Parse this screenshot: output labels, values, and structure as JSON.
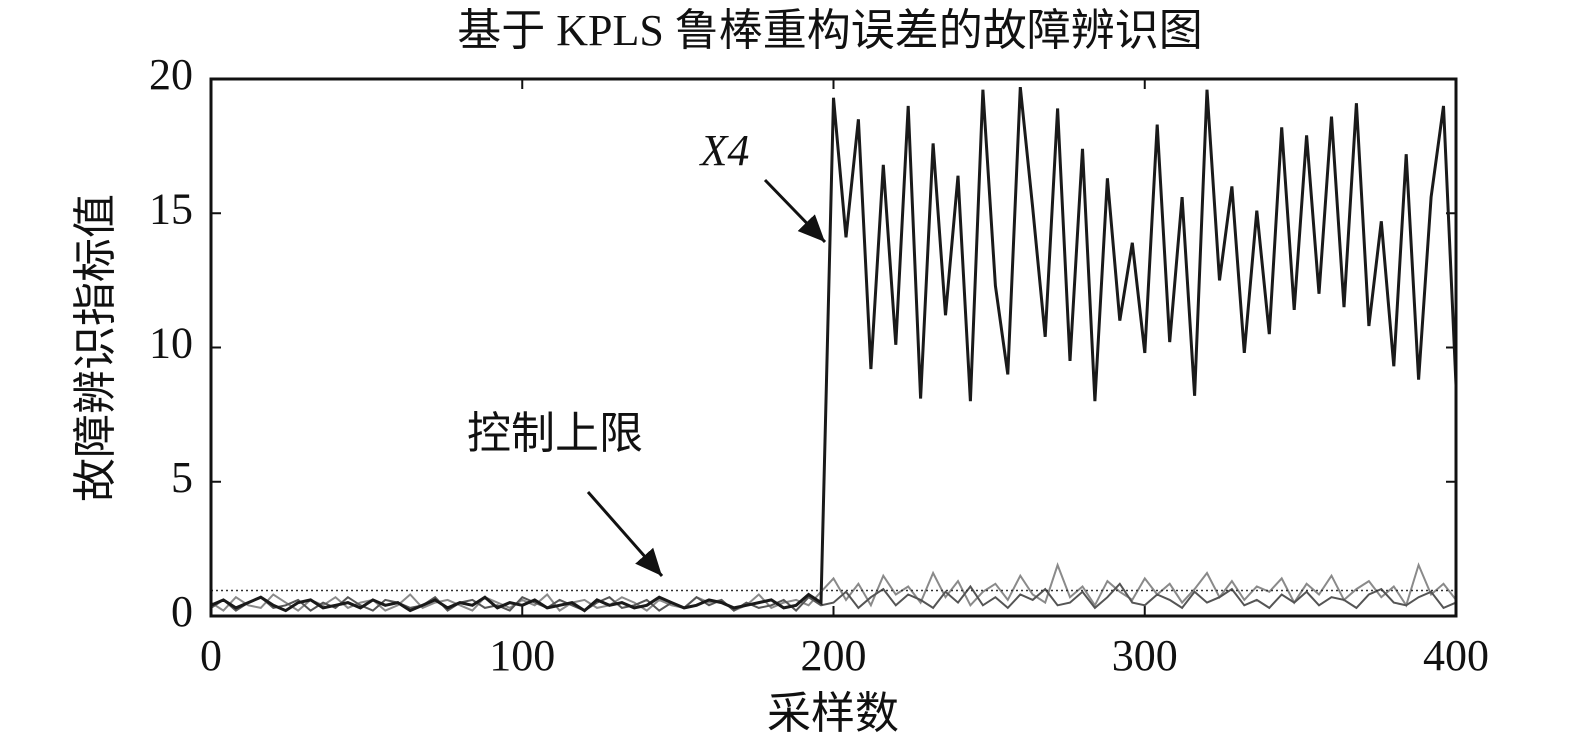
{
  "chart_data": {
    "type": "line",
    "title": "基于 KPLS 鲁棒重构误差的故障辨识图",
    "x_label": "采样数",
    "y_label": "故障辨识指标值",
    "x": [
      0,
      4,
      8,
      12,
      16,
      20,
      24,
      28,
      32,
      36,
      40,
      44,
      48,
      52,
      56,
      60,
      64,
      68,
      72,
      76,
      80,
      84,
      88,
      92,
      96,
      100,
      104,
      108,
      112,
      116,
      120,
      124,
      128,
      132,
      136,
      140,
      144,
      148,
      152,
      156,
      160,
      164,
      168,
      172,
      176,
      180,
      184,
      188,
      192,
      196,
      200,
      204,
      208,
      212,
      216,
      220,
      224,
      228,
      232,
      236,
      240,
      244,
      248,
      252,
      256,
      260,
      264,
      268,
      272,
      276,
      280,
      284,
      288,
      292,
      296,
      300,
      304,
      308,
      312,
      316,
      320,
      324,
      328,
      332,
      336,
      340,
      344,
      348,
      352,
      356,
      360,
      364,
      368,
      372,
      376,
      380,
      384,
      388,
      392,
      396,
      400
    ],
    "series": [
      {
        "color": "#8a8a8a",
        "values": [
          0.5,
          0.2,
          0.7,
          0.4,
          0.3,
          0.8,
          0.5,
          0.2,
          0.6,
          0.4,
          0.7,
          0.3,
          0.5,
          0.6,
          0.2,
          0.4,
          0.8,
          0.3,
          0.5,
          0.6,
          0.4,
          0.2,
          0.7,
          0.5,
          0.3,
          0.6,
          0.4,
          0.8,
          0.2,
          0.5,
          0.6,
          0.3,
          0.4,
          0.7,
          0.5,
          0.2,
          0.6,
          0.4,
          0.3,
          0.7,
          0.5,
          0.6,
          0.2,
          0.4,
          0.8,
          0.3,
          0.5,
          0.6,
          0.4,
          0.9,
          1.4,
          0.6,
          1.2,
          0.4,
          1.5,
          0.8,
          1.1,
          0.5,
          1.6,
          0.7,
          1.3,
          0.4,
          0.9,
          1.2,
          0.6,
          1.5,
          0.8,
          0.5,
          1.9,
          0.7,
          1.1,
          0.4,
          1.3,
          0.9,
          0.6,
          1.4,
          0.8,
          1.2,
          0.5,
          1.0,
          1.6,
          0.7,
          1.3,
          0.6,
          1.1,
          0.9,
          1.4,
          0.5,
          1.2,
          0.8,
          1.5,
          0.6,
          1.0,
          1.3,
          0.7,
          1.1,
          0.4,
          1.9,
          0.8,
          1.2,
          0.6
        ]
      },
      {
        "color": "#555555",
        "values": [
          0.3,
          0.6,
          0.2,
          0.5,
          0.7,
          0.3,
          0.4,
          0.6,
          0.2,
          0.5,
          0.3,
          0.7,
          0.4,
          0.2,
          0.6,
          0.5,
          0.3,
          0.4,
          0.7,
          0.2,
          0.5,
          0.6,
          0.3,
          0.4,
          0.2,
          0.7,
          0.5,
          0.3,
          0.6,
          0.4,
          0.2,
          0.5,
          0.7,
          0.3,
          0.4,
          0.6,
          0.2,
          0.5,
          0.3,
          0.7,
          0.4,
          0.6,
          0.2,
          0.5,
          0.3,
          0.4,
          0.6,
          0.2,
          0.7,
          0.4,
          0.5,
          0.9,
          0.3,
          0.7,
          1.0,
          0.4,
          0.8,
          0.6,
          0.3,
          0.9,
          0.5,
          1.1,
          0.4,
          0.7,
          0.3,
          0.8,
          0.6,
          1.0,
          0.4,
          0.5,
          0.9,
          0.3,
          0.7,
          1.2,
          0.5,
          0.4,
          0.8,
          0.6,
          0.3,
          0.9,
          0.5,
          0.7,
          1.0,
          0.4,
          0.6,
          0.3,
          0.8,
          0.5,
          0.9,
          0.4,
          0.7,
          0.6,
          0.3,
          0.8,
          1.0,
          0.5,
          0.4,
          0.7,
          0.9,
          0.3,
          0.5
        ]
      },
      {
        "name": "X4",
        "color": "#1a1a1a",
        "values": [
          0.4,
          0.6,
          0.3,
          0.5,
          0.7,
          0.4,
          0.2,
          0.5,
          0.6,
          0.3,
          0.4,
          0.5,
          0.3,
          0.6,
          0.4,
          0.5,
          0.2,
          0.4,
          0.6,
          0.3,
          0.5,
          0.4,
          0.7,
          0.3,
          0.5,
          0.4,
          0.6,
          0.3,
          0.4,
          0.5,
          0.2,
          0.6,
          0.4,
          0.5,
          0.3,
          0.4,
          0.7,
          0.5,
          0.3,
          0.4,
          0.6,
          0.5,
          0.3,
          0.4,
          0.5,
          0.6,
          0.3,
          0.4,
          0.8,
          0.5,
          19.3,
          14.1,
          18.5,
          9.2,
          16.8,
          10.1,
          19.0,
          8.1,
          17.6,
          11.2,
          16.4,
          8.0,
          19.6,
          12.3,
          9.0,
          19.7,
          15.2,
          10.4,
          18.9,
          9.5,
          17.4,
          8.0,
          16.3,
          11.0,
          13.9,
          9.8,
          18.3,
          10.2,
          15.6,
          8.2,
          19.6,
          12.5,
          16.0,
          9.8,
          15.1,
          10.5,
          18.2,
          11.4,
          17.9,
          12.0,
          18.6,
          11.5,
          19.1,
          10.8,
          14.7,
          9.3,
          17.2,
          8.8,
          15.6,
          19.0,
          8.6
        ]
      }
    ],
    "control_limit": {
      "label": "控制上限",
      "value": 0.95
    },
    "xlim": [
      0,
      400
    ],
    "xticks": [
      0,
      100,
      200,
      300,
      400
    ],
    "ylim": [
      0,
      20
    ],
    "yticks": [
      0,
      5,
      10,
      15,
      20
    ]
  }
}
